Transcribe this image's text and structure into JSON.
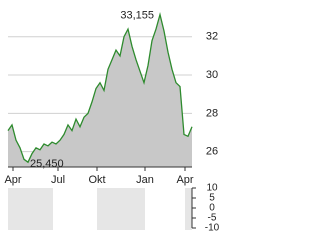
{
  "chart_data": [
    {
      "type": "line",
      "values": [
        27.1,
        27.4,
        26.6,
        26.2,
        25.6,
        25.45,
        25.9,
        26.2,
        26.1,
        26.4,
        26.3,
        26.5,
        26.4,
        26.6,
        26.9,
        27.4,
        27.1,
        27.7,
        27.3,
        27.8,
        28.0,
        28.6,
        29.3,
        29.6,
        29.2,
        30.3,
        30.8,
        31.3,
        31.0,
        32.0,
        32.4,
        31.5,
        30.8,
        30.2,
        29.6,
        30.5,
        31.8,
        32.4,
        33.155,
        32.3,
        31.2,
        30.3,
        29.6,
        29.4,
        26.9,
        26.8,
        27.3
      ],
      "color": "#2e8b2e",
      "fill": "#c8c8c8",
      "xlim": [
        0,
        46
      ],
      "xticks": [
        {
          "value": 1.25,
          "label": "Apr"
        },
        {
          "value": 12.5,
          "label": "Jul"
        },
        {
          "value": 22.25,
          "label": "Okt"
        },
        {
          "value": 34.25,
          "label": "Jan"
        },
        {
          "value": 44.25,
          "label": "Apr"
        }
      ],
      "ylim": [
        25.2,
        33.5
      ],
      "yticks": [
        26,
        28,
        30,
        32
      ],
      "grid": true,
      "max_label": "33,155",
      "min_label": "25,450"
    },
    {
      "type": "bar",
      "ylim": [
        -10,
        10
      ],
      "yticks": [
        10,
        5,
        0,
        -5,
        -10
      ],
      "grid": true
    }
  ]
}
